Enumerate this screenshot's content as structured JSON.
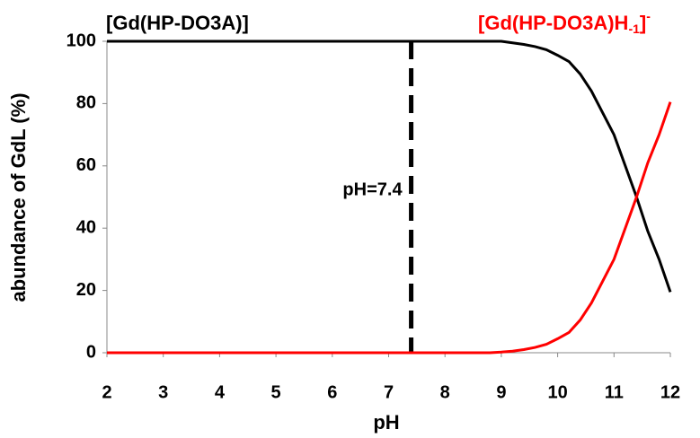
{
  "chart_data": {
    "type": "line",
    "x_label": "pH",
    "y_label": "abundance of GdL (%)",
    "x": [
      2,
      3,
      4,
      5,
      6,
      7,
      8,
      8.5,
      8.8,
      9,
      9.2,
      9.4,
      9.6,
      9.8,
      10,
      10.2,
      10.4,
      10.6,
      10.8,
      11,
      11.2,
      11.4,
      11.6,
      11.8,
      12
    ],
    "series": [
      {
        "name": "[Gd(HP-DO3A)]",
        "color": "#000000",
        "values": [
          100,
          100,
          100,
          100,
          100,
          100,
          100,
          100,
          100,
          100,
          99.5,
          99,
          98.3,
          97.3,
          95.5,
          93.5,
          89.5,
          84,
          77,
          70,
          60,
          50,
          39,
          30,
          19.5
        ]
      },
      {
        "name": "[Gd(HP-DO3A)H",
        "name_subscript": "-1",
        "name_end": "]",
        "name_superscript": "-",
        "color": "#ff0000",
        "values": [
          0,
          0,
          0,
          0,
          0,
          0,
          0,
          0,
          0,
          0.2,
          0.5,
          1,
          1.7,
          2.7,
          4.5,
          6.5,
          10.5,
          16,
          23,
          30,
          40,
          50,
          61,
          70,
          80.5
        ]
      }
    ],
    "annotation": {
      "x": 7.4,
      "label": "pH=7.4"
    },
    "xlim": [
      2,
      12
    ],
    "xticks": [
      2,
      3,
      4,
      5,
      6,
      7,
      8,
      9,
      10,
      11,
      12
    ],
    "ylim": [
      0,
      100
    ],
    "yticks": [
      0,
      20,
      40,
      60,
      80,
      100
    ],
    "grid": false
  }
}
